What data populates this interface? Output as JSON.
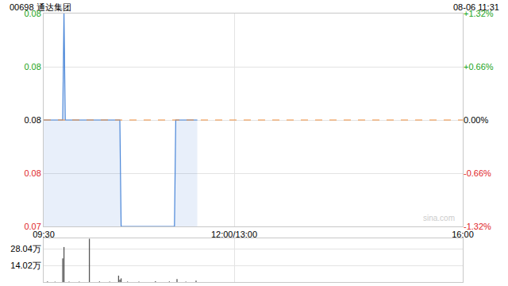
{
  "chart_data": [
    {
      "type": "line",
      "title": "00698 通达集团",
      "subtitle": "08-06 11:31",
      "watermark": "sina.com",
      "x": [
        0,
        15,
        16,
        17,
        60,
        61,
        103,
        104,
        121
      ],
      "values": [
        0.076,
        0.076,
        0.077,
        0.076,
        0.076,
        0.075,
        0.075,
        0.076,
        0.076
      ],
      "color": "#4a86d8",
      "xlim": [
        0,
        330
      ],
      "xticks": [
        {
          "value": 0,
          "label": "09:30"
        },
        {
          "value": 150,
          "label": "12:00/13:00"
        },
        {
          "value": 330,
          "label": "16:00"
        }
      ],
      "ylim": [
        0.075,
        0.077
      ],
      "yticks": [
        {
          "value": 0.077,
          "label": "0.08"
        },
        {
          "value": 0.0765,
          "label": "0.08"
        },
        {
          "value": 0.076,
          "label": "0.08"
        },
        {
          "value": 0.0755,
          "label": "0.08"
        },
        {
          "value": 0.075,
          "label": "0.07"
        }
      ],
      "y2lim": [
        -1.32,
        1.32
      ],
      "y2ticks": [
        {
          "value": 1.32,
          "label": "+1.32%"
        },
        {
          "value": 0.66,
          "label": "+0.66%"
        },
        {
          "value": 0,
          "label": "0.00%"
        },
        {
          "value": -0.66,
          "label": "-0.66%"
        },
        {
          "value": -1.32,
          "label": "-1.32%"
        }
      ],
      "reference_line": {
        "value": 0.076,
        "color": "#f0903c",
        "line_style": "dashed"
      },
      "grid": true
    },
    {
      "type": "bar",
      "x": [
        3,
        9,
        15,
        16,
        20,
        28,
        36,
        44,
        52,
        59,
        60,
        61,
        66,
        75,
        88,
        99,
        105,
        112,
        120
      ],
      "values": [
        5000,
        3000,
        200000,
        296000,
        4000,
        3000,
        366000,
        5000,
        3000,
        54000,
        20000,
        31000,
        4000,
        3000,
        6000,
        5000,
        25000,
        3000,
        12000
      ],
      "color": "#555555",
      "xlim": [
        0,
        330
      ],
      "ylim": [
        0,
        370000
      ],
      "yticks": [
        0,
        {
          "value": 140200,
          "label": "14.02万"
        },
        {
          "value": 280400,
          "label": "28.04万"
        }
      ],
      "tick_labels": "y",
      "grid": true
    }
  ]
}
